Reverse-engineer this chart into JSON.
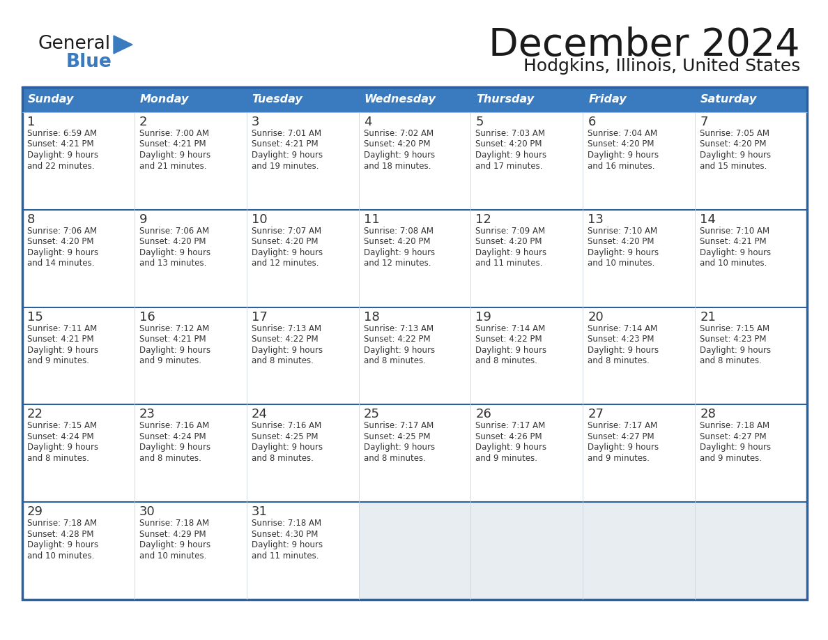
{
  "title": "December 2024",
  "subtitle": "Hodgkins, Illinois, United States",
  "header_color": "#3a7abf",
  "header_text_color": "#ffffff",
  "cell_bg_white": "#ffffff",
  "cell_bg_gray": "#e8edf2",
  "border_color": "#2a5fa0",
  "week_sep_color": "#2a5fa0",
  "text_color": "#333333",
  "day_names": [
    "Sunday",
    "Monday",
    "Tuesday",
    "Wednesday",
    "Thursday",
    "Friday",
    "Saturday"
  ],
  "weeks": [
    [
      {
        "day": 1,
        "sunrise": "6:59 AM",
        "sunset": "4:21 PM",
        "daylight": "9 hours and 22 minutes."
      },
      {
        "day": 2,
        "sunrise": "7:00 AM",
        "sunset": "4:21 PM",
        "daylight": "9 hours and 21 minutes."
      },
      {
        "day": 3,
        "sunrise": "7:01 AM",
        "sunset": "4:21 PM",
        "daylight": "9 hours and 19 minutes."
      },
      {
        "day": 4,
        "sunrise": "7:02 AM",
        "sunset": "4:20 PM",
        "daylight": "9 hours and 18 minutes."
      },
      {
        "day": 5,
        "sunrise": "7:03 AM",
        "sunset": "4:20 PM",
        "daylight": "9 hours and 17 minutes."
      },
      {
        "day": 6,
        "sunrise": "7:04 AM",
        "sunset": "4:20 PM",
        "daylight": "9 hours and 16 minutes."
      },
      {
        "day": 7,
        "sunrise": "7:05 AM",
        "sunset": "4:20 PM",
        "daylight": "9 hours and 15 minutes."
      }
    ],
    [
      {
        "day": 8,
        "sunrise": "7:06 AM",
        "sunset": "4:20 PM",
        "daylight": "9 hours and 14 minutes."
      },
      {
        "day": 9,
        "sunrise": "7:06 AM",
        "sunset": "4:20 PM",
        "daylight": "9 hours and 13 minutes."
      },
      {
        "day": 10,
        "sunrise": "7:07 AM",
        "sunset": "4:20 PM",
        "daylight": "9 hours and 12 minutes."
      },
      {
        "day": 11,
        "sunrise": "7:08 AM",
        "sunset": "4:20 PM",
        "daylight": "9 hours and 12 minutes."
      },
      {
        "day": 12,
        "sunrise": "7:09 AM",
        "sunset": "4:20 PM",
        "daylight": "9 hours and 11 minutes."
      },
      {
        "day": 13,
        "sunrise": "7:10 AM",
        "sunset": "4:20 PM",
        "daylight": "9 hours and 10 minutes."
      },
      {
        "day": 14,
        "sunrise": "7:10 AM",
        "sunset": "4:21 PM",
        "daylight": "9 hours and 10 minutes."
      }
    ],
    [
      {
        "day": 15,
        "sunrise": "7:11 AM",
        "sunset": "4:21 PM",
        "daylight": "9 hours and 9 minutes."
      },
      {
        "day": 16,
        "sunrise": "7:12 AM",
        "sunset": "4:21 PM",
        "daylight": "9 hours and 9 minutes."
      },
      {
        "day": 17,
        "sunrise": "7:13 AM",
        "sunset": "4:22 PM",
        "daylight": "9 hours and 8 minutes."
      },
      {
        "day": 18,
        "sunrise": "7:13 AM",
        "sunset": "4:22 PM",
        "daylight": "9 hours and 8 minutes."
      },
      {
        "day": 19,
        "sunrise": "7:14 AM",
        "sunset": "4:22 PM",
        "daylight": "9 hours and 8 minutes."
      },
      {
        "day": 20,
        "sunrise": "7:14 AM",
        "sunset": "4:23 PM",
        "daylight": "9 hours and 8 minutes."
      },
      {
        "day": 21,
        "sunrise": "7:15 AM",
        "sunset": "4:23 PM",
        "daylight": "9 hours and 8 minutes."
      }
    ],
    [
      {
        "day": 22,
        "sunrise": "7:15 AM",
        "sunset": "4:24 PM",
        "daylight": "9 hours and 8 minutes."
      },
      {
        "day": 23,
        "sunrise": "7:16 AM",
        "sunset": "4:24 PM",
        "daylight": "9 hours and 8 minutes."
      },
      {
        "day": 24,
        "sunrise": "7:16 AM",
        "sunset": "4:25 PM",
        "daylight": "9 hours and 8 minutes."
      },
      {
        "day": 25,
        "sunrise": "7:17 AM",
        "sunset": "4:25 PM",
        "daylight": "9 hours and 8 minutes."
      },
      {
        "day": 26,
        "sunrise": "7:17 AM",
        "sunset": "4:26 PM",
        "daylight": "9 hours and 9 minutes."
      },
      {
        "day": 27,
        "sunrise": "7:17 AM",
        "sunset": "4:27 PM",
        "daylight": "9 hours and 9 minutes."
      },
      {
        "day": 28,
        "sunrise": "7:18 AM",
        "sunset": "4:27 PM",
        "daylight": "9 hours and 9 minutes."
      }
    ],
    [
      {
        "day": 29,
        "sunrise": "7:18 AM",
        "sunset": "4:28 PM",
        "daylight": "9 hours and 10 minutes."
      },
      {
        "day": 30,
        "sunrise": "7:18 AM",
        "sunset": "4:29 PM",
        "daylight": "9 hours and 10 minutes."
      },
      {
        "day": 31,
        "sunrise": "7:18 AM",
        "sunset": "4:30 PM",
        "daylight": "9 hours and 11 minutes."
      },
      null,
      null,
      null,
      null
    ]
  ]
}
